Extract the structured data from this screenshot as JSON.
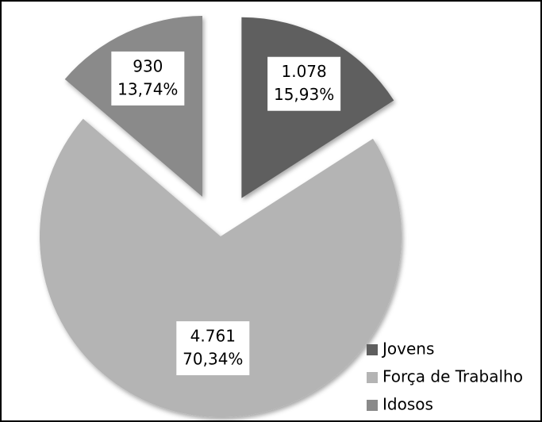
{
  "chart_data": {
    "type": "pie",
    "categories": [
      "Jovens",
      "Força de Trabalho",
      "Idosos"
    ],
    "values": [
      1078,
      4761,
      930
    ],
    "value_labels": [
      "1.078",
      "4.761",
      "930"
    ],
    "percentages": [
      15.93,
      70.34,
      13.74
    ],
    "percentage_labels": [
      "15,93%",
      "70,34%",
      "13,74%"
    ],
    "colors": [
      "#5e5e5e",
      "#b4b4b4",
      "#8a8a8a"
    ],
    "legend": "lower right"
  }
}
